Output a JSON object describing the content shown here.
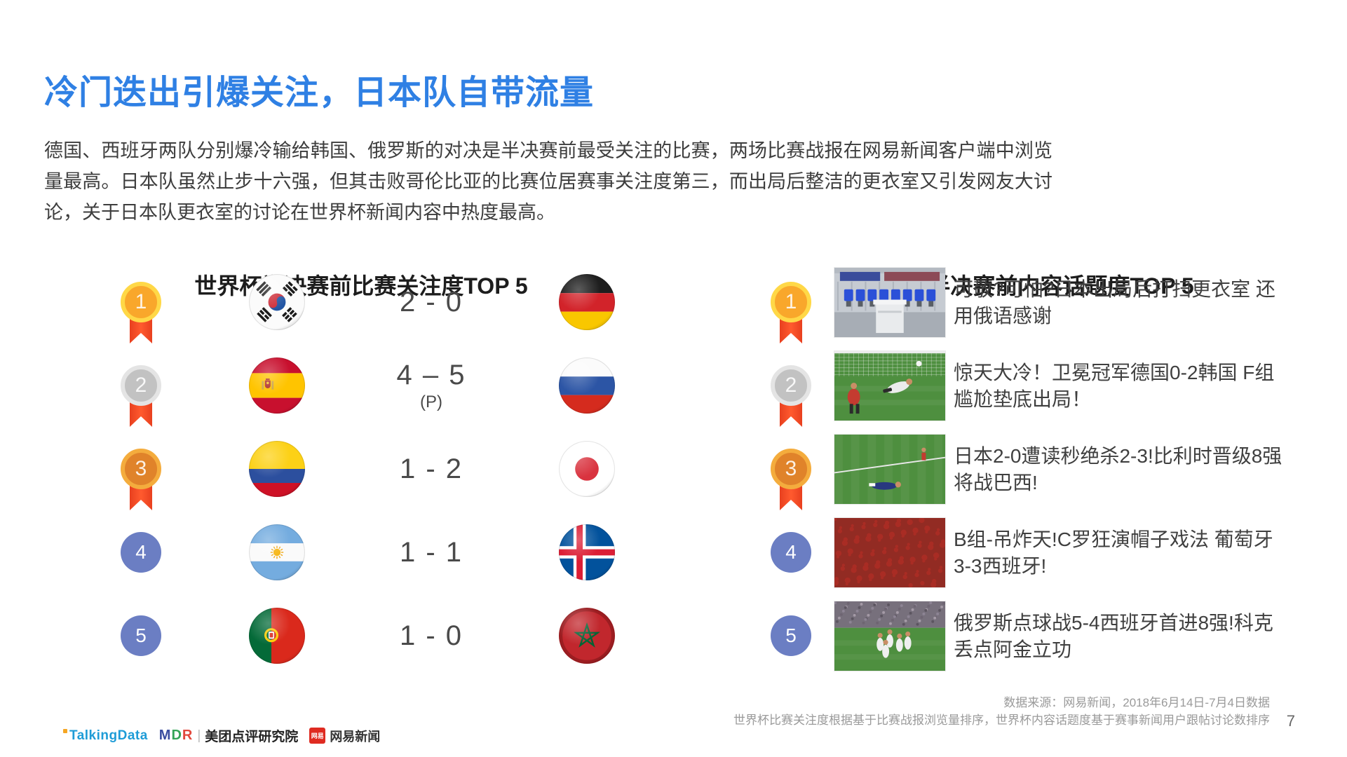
{
  "page": {
    "title": "冷门迭出引爆关注，日本队自带流量",
    "paragraph": "德国、西班牙两队分别爆冷输给韩国、俄罗斯的对决是半决赛前最受关注的比赛，两场比赛战报在网易新闻客户端中浏览量最高。日本队虽然止步十六强，但其击败哥伦比亚的比赛位居赛事关注度第三，而出局后整洁的更衣室又引发网友大讨论，关于日本队更衣室的讨论在世界杯新闻内容中热度最高。",
    "page_number": "7"
  },
  "colors": {
    "title_blue": "#2F80E4",
    "medal_gold": "#F9A72B",
    "medal_silver": "#C2C2C2",
    "medal_bronze": "#E0832A",
    "rank_plain_blue": "#6B7EC3",
    "ribbon_red": "#FF5A2E"
  },
  "left_panel": {
    "heading": "世界杯半决赛前比赛关注度TOP 5",
    "rows": [
      {
        "rank": "1",
        "medal": "gold",
        "home_flag": "south-korea",
        "score": "2 - 0",
        "score_note": "",
        "away_flag": "germany"
      },
      {
        "rank": "2",
        "medal": "silver",
        "home_flag": "spain",
        "score": "4 – 5",
        "score_note": "(P)",
        "away_flag": "russia"
      },
      {
        "rank": "3",
        "medal": "bronze",
        "home_flag": "colombia",
        "score": "1 - 2",
        "score_note": "",
        "away_flag": "japan"
      },
      {
        "rank": "4",
        "medal": "plain",
        "home_flag": "argentina",
        "score": "1 - 1",
        "score_note": "",
        "away_flag": "iceland"
      },
      {
        "rank": "5",
        "medal": "plain",
        "home_flag": "portugal",
        "score": "1 - 0",
        "score_note": "",
        "away_flag": "morocco"
      }
    ]
  },
  "right_panel": {
    "heading": "世界杯半决赛前内容话题度TOP 5",
    "rows": [
      {
        "rank": "1",
        "medal": "gold",
        "thumb": "locker-room",
        "headline": "可敬?可怕?日本出局后打扫更衣室 还用俄语感谢"
      },
      {
        "rank": "2",
        "medal": "silver",
        "thumb": "goalkeeper-save",
        "headline": "惊天大冷！卫冕冠军德国0-2韩国 F组尴尬垫底出局！"
      },
      {
        "rank": "3",
        "medal": "bronze",
        "thumb": "player-on-pitch",
        "headline": "日本2-0遭读秒绝杀2-3!比利时晋级8强将战巴西!"
      },
      {
        "rank": "4",
        "medal": "plain",
        "thumb": "fans-crowd",
        "headline": "B组-吊炸天!C罗狂演帽子戏法 葡萄牙3-3西班牙!"
      },
      {
        "rank": "5",
        "medal": "plain",
        "thumb": "team-celebration",
        "headline": "俄罗斯点球战5-4西班牙首进8强!科克丢点阿金立功"
      }
    ]
  },
  "footer": {
    "source_line1": "数据来源：网易新闻，2018年6月14日-7月4日数据",
    "source_line2": "世界杯比赛关注度根据基于比赛战报浏览量排序，世界杯内容话题度基于赛事新闻用户跟帖讨论数排序",
    "logos": {
      "talkingdata": "TalkingData",
      "mdr": "MDR",
      "meituan": "美团点评研究院",
      "netease_badge": "网易",
      "netease": "网易新闻"
    }
  }
}
